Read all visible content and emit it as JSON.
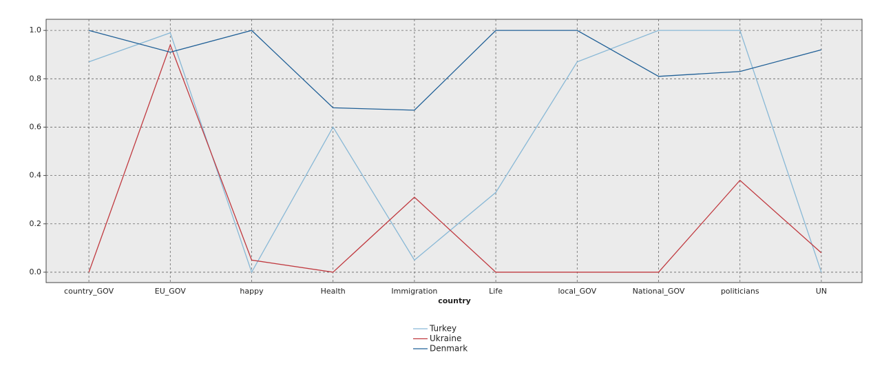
{
  "chart_data": {
    "type": "line",
    "x_label": "country",
    "categories": [
      "country_GOV",
      "EU_GOV",
      "happy",
      "Health",
      "Immigration",
      "Life",
      "local_GOV",
      "National_GOV",
      "politicians",
      "UN"
    ],
    "series": [
      {
        "name": "Turkey",
        "color": "#88b8d6",
        "values": [
          0.87,
          0.99,
          0.0,
          0.6,
          0.05,
          0.33,
          0.87,
          1.0,
          1.0,
          0.0
        ]
      },
      {
        "name": "Ukraine",
        "color": "#c0393f",
        "values": [
          0.0,
          0.94,
          0.05,
          0.0,
          0.31,
          0.0,
          0.0,
          0.0,
          0.38,
          0.08
        ]
      },
      {
        "name": "Denmark",
        "color": "#1f5f96",
        "values": [
          1.0,
          0.91,
          1.0,
          0.68,
          0.67,
          1.0,
          1.0,
          0.81,
          0.83,
          0.92
        ]
      }
    ],
    "ylim": [
      -0.043,
      1.046
    ],
    "yticks": [
      {
        "value": 0,
        "label": "0.0"
      },
      0.2,
      0.4,
      0.6,
      0.8,
      {
        "value": 1,
        "label": "1.0"
      }
    ],
    "grid": true,
    "legend": "bottom"
  }
}
